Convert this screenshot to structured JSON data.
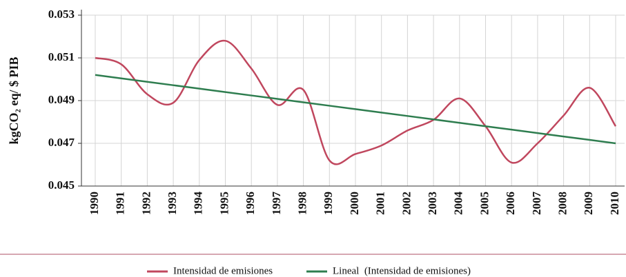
{
  "chart_data": {
    "type": "line",
    "ylabel": "kgCO₂ eq/ $ PIB",
    "categories": [
      "1990",
      "1991",
      "1992",
      "1993",
      "1994",
      "1995",
      "1996",
      "1997",
      "1998",
      "1999",
      "2000",
      "2001",
      "2002",
      "2003",
      "2004",
      "2005",
      "2006",
      "2007",
      "2008",
      "2009",
      "2010"
    ],
    "series": [
      {
        "name": "Intensidad de emisiones",
        "color": "#c0475e",
        "smooth": true,
        "values": [
          0.051,
          0.0507,
          0.0493,
          0.0489,
          0.0509,
          0.0518,
          0.0505,
          0.0488,
          0.0495,
          0.0462,
          0.0465,
          0.0469,
          0.0476,
          0.0481,
          0.0491,
          0.0478,
          0.0461,
          0.047,
          0.0483,
          0.0496,
          0.0478
        ]
      },
      {
        "name": "Lineal  (Intensidad de emisiones)",
        "color": "#2e7d4f",
        "smooth": false,
        "values": [
          0.0502,
          0.05004,
          0.04988,
          0.04972,
          0.04956,
          0.0494,
          0.04924,
          0.04908,
          0.04892,
          0.04876,
          0.0486,
          0.04844,
          0.04828,
          0.04812,
          0.04796,
          0.0478,
          0.04764,
          0.04748,
          0.04732,
          0.04716,
          0.047
        ]
      }
    ],
    "ylim": [
      0.045,
      0.053
    ],
    "yticks": [
      0.045,
      0.047,
      0.049,
      0.051,
      0.053
    ],
    "grid": true,
    "legend": "bottom"
  }
}
